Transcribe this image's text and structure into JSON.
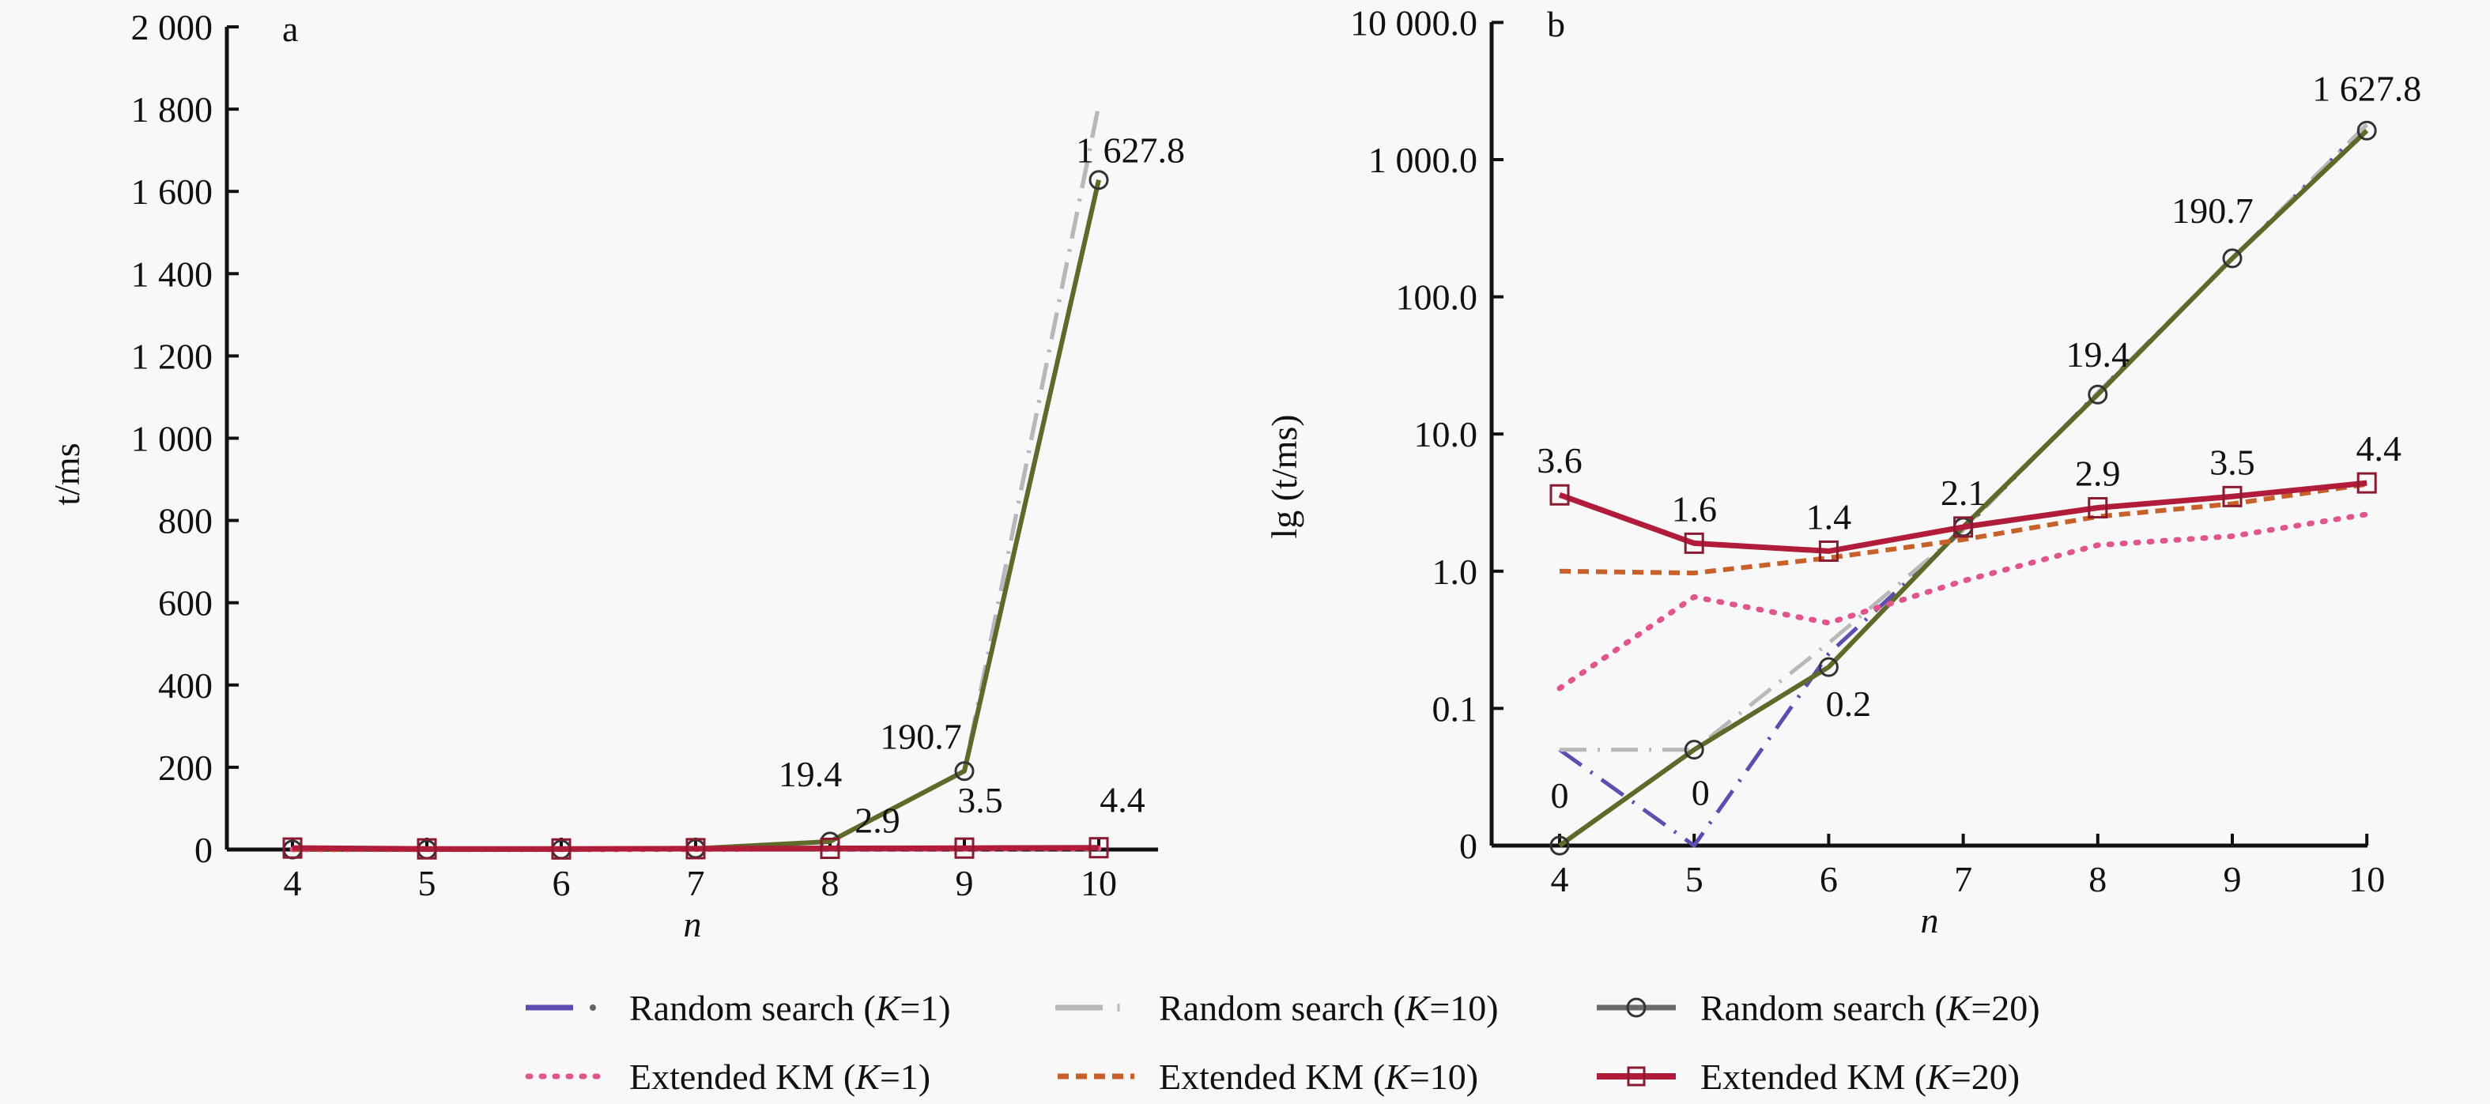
{
  "figure": {
    "panel_a_label": "a",
    "panel_b_label": "b",
    "panel_a_ylabel": "t/ms",
    "panel_b_ylabel": "lg (t/ms)",
    "xlabel": "n"
  },
  "chart_data": [
    {
      "type": "line",
      "panel": "a",
      "title": "",
      "xlabel": "n",
      "ylabel": "t/ms",
      "x": [
        4,
        5,
        6,
        7,
        8,
        9,
        10
      ],
      "xticks": [
        "4",
        "5",
        "6",
        "7",
        "8",
        "9",
        "10"
      ],
      "ylim": [
        0,
        2000
      ],
      "yticks": [
        0,
        200,
        400,
        600,
        800,
        1000,
        1200,
        1400,
        1600,
        1800,
        2000
      ],
      "ytick_labels": [
        "0",
        "200",
        "400",
        "600",
        "800",
        "1 000",
        "1 200",
        "1 400",
        "1 600",
        "1 800",
        "2 000"
      ],
      "grid": false,
      "legend_position": "bottom",
      "series": [
        {
          "name": "Random search (K=1)",
          "color": "#5a4fb0",
          "style": "dashdot",
          "values": [
            0.05,
            0.01,
            0.25,
            2.0,
            20.0,
            190.0,
            1810.0
          ]
        },
        {
          "name": "Random search (K=10)",
          "color": "#b8b8b8",
          "style": "dashdot",
          "values": [
            0.05,
            0.05,
            0.3,
            2.0,
            20.0,
            190.0,
            1810.0
          ]
        },
        {
          "name": "Random search (K=20)",
          "color": "#5f6a2a",
          "style": "solid-circle",
          "values": [
            0.01,
            0.05,
            0.2,
            2.1,
            19.4,
            190.7,
            1627.8
          ]
        },
        {
          "name": "Extended KM (K=1)",
          "color": "#e0558a",
          "style": "dotted",
          "values": [
            0.14,
            0.65,
            0.42,
            0.85,
            1.55,
            1.8,
            2.6
          ]
        },
        {
          "name": "Extended KM (K=10)",
          "color": "#c8602a",
          "style": "dashed",
          "values": [
            1.0,
            0.97,
            1.25,
            1.7,
            2.5,
            3.1,
            4.3
          ]
        },
        {
          "name": "Extended KM (K=20)",
          "color": "#b01c3a",
          "style": "solid-square",
          "values": [
            3.6,
            1.6,
            1.4,
            2.1,
            2.9,
            3.5,
            4.4
          ]
        }
      ],
      "annotations": [
        {
          "text": "1 627.8",
          "n": 10,
          "series": "Random search (K=20)"
        },
        {
          "text": "190.7",
          "n": 9,
          "series": "Random search (K=20)"
        },
        {
          "text": "19.4",
          "n": 8,
          "series": "Random search (K=20)"
        },
        {
          "text": "2.9",
          "n": 8,
          "series": "Extended KM (K=20)"
        },
        {
          "text": "3.5",
          "n": 9,
          "series": "Extended KM (K=20)"
        },
        {
          "text": "4.4",
          "n": 10,
          "series": "Extended KM (K=20)"
        }
      ]
    },
    {
      "type": "line",
      "panel": "b",
      "title": "",
      "xlabel": "n",
      "ylabel": "lg (t/ms)",
      "yscale": "log",
      "x": [
        4,
        5,
        6,
        7,
        8,
        9,
        10
      ],
      "xticks": [
        "4",
        "5",
        "6",
        "7",
        "8",
        "9",
        "10"
      ],
      "ylim": [
        0.01,
        10000
      ],
      "yticks": [
        0.01,
        0.1,
        1,
        10,
        100,
        1000,
        10000
      ],
      "ytick_labels": [
        "0",
        "0.1",
        "1.0",
        "10.0",
        "100.0",
        "1 000.0",
        "10 000.0"
      ],
      "grid": false,
      "legend_position": "bottom",
      "series": [
        {
          "name": "Random search (K=1)",
          "color": "#5a4fb0",
          "style": "dashdot",
          "values": [
            0.05,
            0.01,
            0.25,
            2.0,
            20.0,
            190.0,
            1800.0
          ]
        },
        {
          "name": "Random search (K=10)",
          "color": "#b8b8b8",
          "style": "dashdot",
          "values": [
            0.05,
            0.05,
            0.3,
            2.0,
            20.0,
            190.0,
            1800.0
          ]
        },
        {
          "name": "Random search (K=20)",
          "color": "#5f6a2a",
          "style": "solid-circle",
          "values": [
            0.01,
            0.05,
            0.2,
            2.1,
            19.4,
            190.7,
            1627.8
          ]
        },
        {
          "name": "Extended KM (K=1)",
          "color": "#e0558a",
          "style": "dotted",
          "values": [
            0.14,
            0.65,
            0.42,
            0.85,
            1.55,
            1.8,
            2.6
          ]
        },
        {
          "name": "Extended KM (K=10)",
          "color": "#c8602a",
          "style": "dashed",
          "values": [
            1.0,
            0.97,
            1.25,
            1.7,
            2.5,
            3.1,
            4.3
          ]
        },
        {
          "name": "Extended KM (K=20)",
          "color": "#b01c3a",
          "style": "solid-square",
          "values": [
            3.6,
            1.6,
            1.4,
            2.1,
            2.9,
            3.5,
            4.4
          ]
        }
      ],
      "annotations": [
        {
          "text": "0",
          "n": 4,
          "series": "Random search (K=20)"
        },
        {
          "text": "0",
          "n": 5,
          "series": "Random search (K=20)"
        },
        {
          "text": "0.2",
          "n": 6,
          "series": "Random search (K=20)"
        },
        {
          "text": "19.4",
          "n": 8,
          "series": "Random search (K=20)"
        },
        {
          "text": "190.7",
          "n": 9,
          "series": "Random search (K=20)"
        },
        {
          "text": "1 627.8",
          "n": 10,
          "series": "Random search (K=20)"
        },
        {
          "text": "3.6",
          "n": 4,
          "series": "Extended KM (K=20)"
        },
        {
          "text": "1.6",
          "n": 5,
          "series": "Extended KM (K=20)"
        },
        {
          "text": "1.4",
          "n": 6,
          "series": "Extended KM (K=20)"
        },
        {
          "text": "2.1",
          "n": 7,
          "series": "Extended KM (K=20)"
        },
        {
          "text": "2.9",
          "n": 8,
          "series": "Extended KM (K=20)"
        },
        {
          "text": "3.5",
          "n": 9,
          "series": "Extended KM (K=20)"
        },
        {
          "text": "4.4",
          "n": 10,
          "series": "Extended KM (K=20)"
        }
      ]
    }
  ],
  "legend": {
    "items": [
      {
        "prefix": "Random search (",
        "var": "K",
        "suffix": "=1)",
        "style": "dashdot",
        "color": "#5a4fb0"
      },
      {
        "prefix": "Random search (",
        "var": "K",
        "suffix": "=10)",
        "style": "dashdot",
        "color": "#b8b8b8"
      },
      {
        "prefix": "Random search (",
        "var": "K",
        "suffix": "=20)",
        "style": "solid-circle",
        "color": "#6b6b6b"
      },
      {
        "prefix": "Extended KM (",
        "var": "K",
        "suffix": "=1)",
        "style": "dotted",
        "color": "#e0558a"
      },
      {
        "prefix": "Extended KM (",
        "var": "K",
        "suffix": "=10)",
        "style": "dashed",
        "color": "#c8602a"
      },
      {
        "prefix": "Extended KM (",
        "var": "K",
        "suffix": "=20)",
        "style": "solid-square",
        "color": "#b01c3a"
      }
    ]
  }
}
